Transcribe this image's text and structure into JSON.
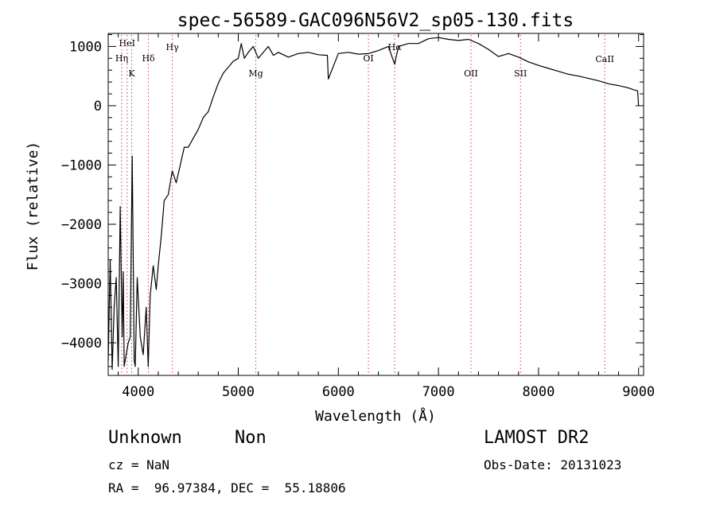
{
  "chart_data": {
    "type": "line",
    "title": "spec-56589-GAC096N56V2_sp05-130.fits",
    "xlabel": "Wavelength (Å)",
    "ylabel": "Flux (relative)",
    "xlim": [
      3700,
      9050
    ],
    "ylim": [
      -4550,
      1220
    ],
    "x_ticks": [
      4000,
      5000,
      6000,
      7000,
      8000,
      9000
    ],
    "y_ticks": [
      -4000,
      -3000,
      -2000,
      -1000,
      0,
      1000
    ],
    "grid": false,
    "series": [
      {
        "x": [
          3700,
          3720,
          3740,
          3760,
          3780,
          3800,
          3820,
          3840,
          3850,
          3860,
          3880,
          3900,
          3920,
          3940,
          3960,
          3970,
          3990,
          4020,
          4050,
          4080,
          4100,
          4120,
          4150,
          4180,
          4200,
          4230,
          4260,
          4300,
          4340,
          4380,
          4420,
          4460,
          4500,
          4550,
          4600,
          4650,
          4700,
          4750,
          4800,
          4850,
          4900,
          4950,
          5000,
          5030,
          5060,
          5100,
          5150,
          5200,
          5250,
          5300,
          5350,
          5400,
          5500,
          5600,
          5700,
          5800,
          5890,
          5900,
          6000,
          6100,
          6200,
          6300,
          6400,
          6500,
          6563,
          6600,
          6700,
          6800,
          6900,
          7000,
          7100,
          7200,
          7300,
          7400,
          7500,
          7600,
          7700,
          7800,
          7900,
          8000,
          8100,
          8200,
          8300,
          8400,
          8500,
          8600,
          8700,
          8800,
          8900,
          8950,
          8990,
          9000
        ],
        "y": [
          -4300,
          -2600,
          -4450,
          -3400,
          -2900,
          -4400,
          -1700,
          -3900,
          -2800,
          -4400,
          -4200,
          -4000,
          -3900,
          -850,
          -4300,
          -4400,
          -2900,
          -3900,
          -4200,
          -3400,
          -4400,
          -3200,
          -2700,
          -3100,
          -2700,
          -2200,
          -1600,
          -1500,
          -1100,
          -1300,
          -1000,
          -700,
          -700,
          -550,
          -400,
          -200,
          -100,
          150,
          380,
          550,
          650,
          750,
          800,
          1050,
          800,
          900,
          1000,
          800,
          900,
          1000,
          850,
          900,
          820,
          880,
          900,
          860,
          850,
          450,
          880,
          900,
          870,
          880,
          930,
          1000,
          700,
          1000,
          1050,
          1050,
          1130,
          1150,
          1120,
          1100,
          1120,
          1050,
          950,
          830,
          880,
          820,
          740,
          680,
          630,
          580,
          530,
          500,
          460,
          420,
          370,
          340,
          300,
          270,
          250,
          0
        ]
      }
    ],
    "line_markers": [
      {
        "label": "HeI",
        "x": 3889
      },
      {
        "label": "Hη",
        "x": 3835
      },
      {
        "label": "K",
        "x": 3934
      },
      {
        "label": "Hδ",
        "x": 4102
      },
      {
        "label": "Hγ",
        "x": 4341
      },
      {
        "label": "Mg",
        "x": 5175
      },
      {
        "label": "OI",
        "x": 6300
      },
      {
        "label": "Hα",
        "x": 6563
      },
      {
        "label": "OII",
        "x": 7325
      },
      {
        "label": "SII",
        "x": 7820
      },
      {
        "label": "CaII",
        "x": 8662
      }
    ]
  },
  "info": {
    "class_label": "Unknown",
    "subclass_label": "Non",
    "survey_label": "LAMOST DR2",
    "cz_text": "cz = NaN",
    "obs_date_text": "Obs-Date: 20131023",
    "coords_text": "RA =  96.97384, DEC =  55.18806"
  }
}
